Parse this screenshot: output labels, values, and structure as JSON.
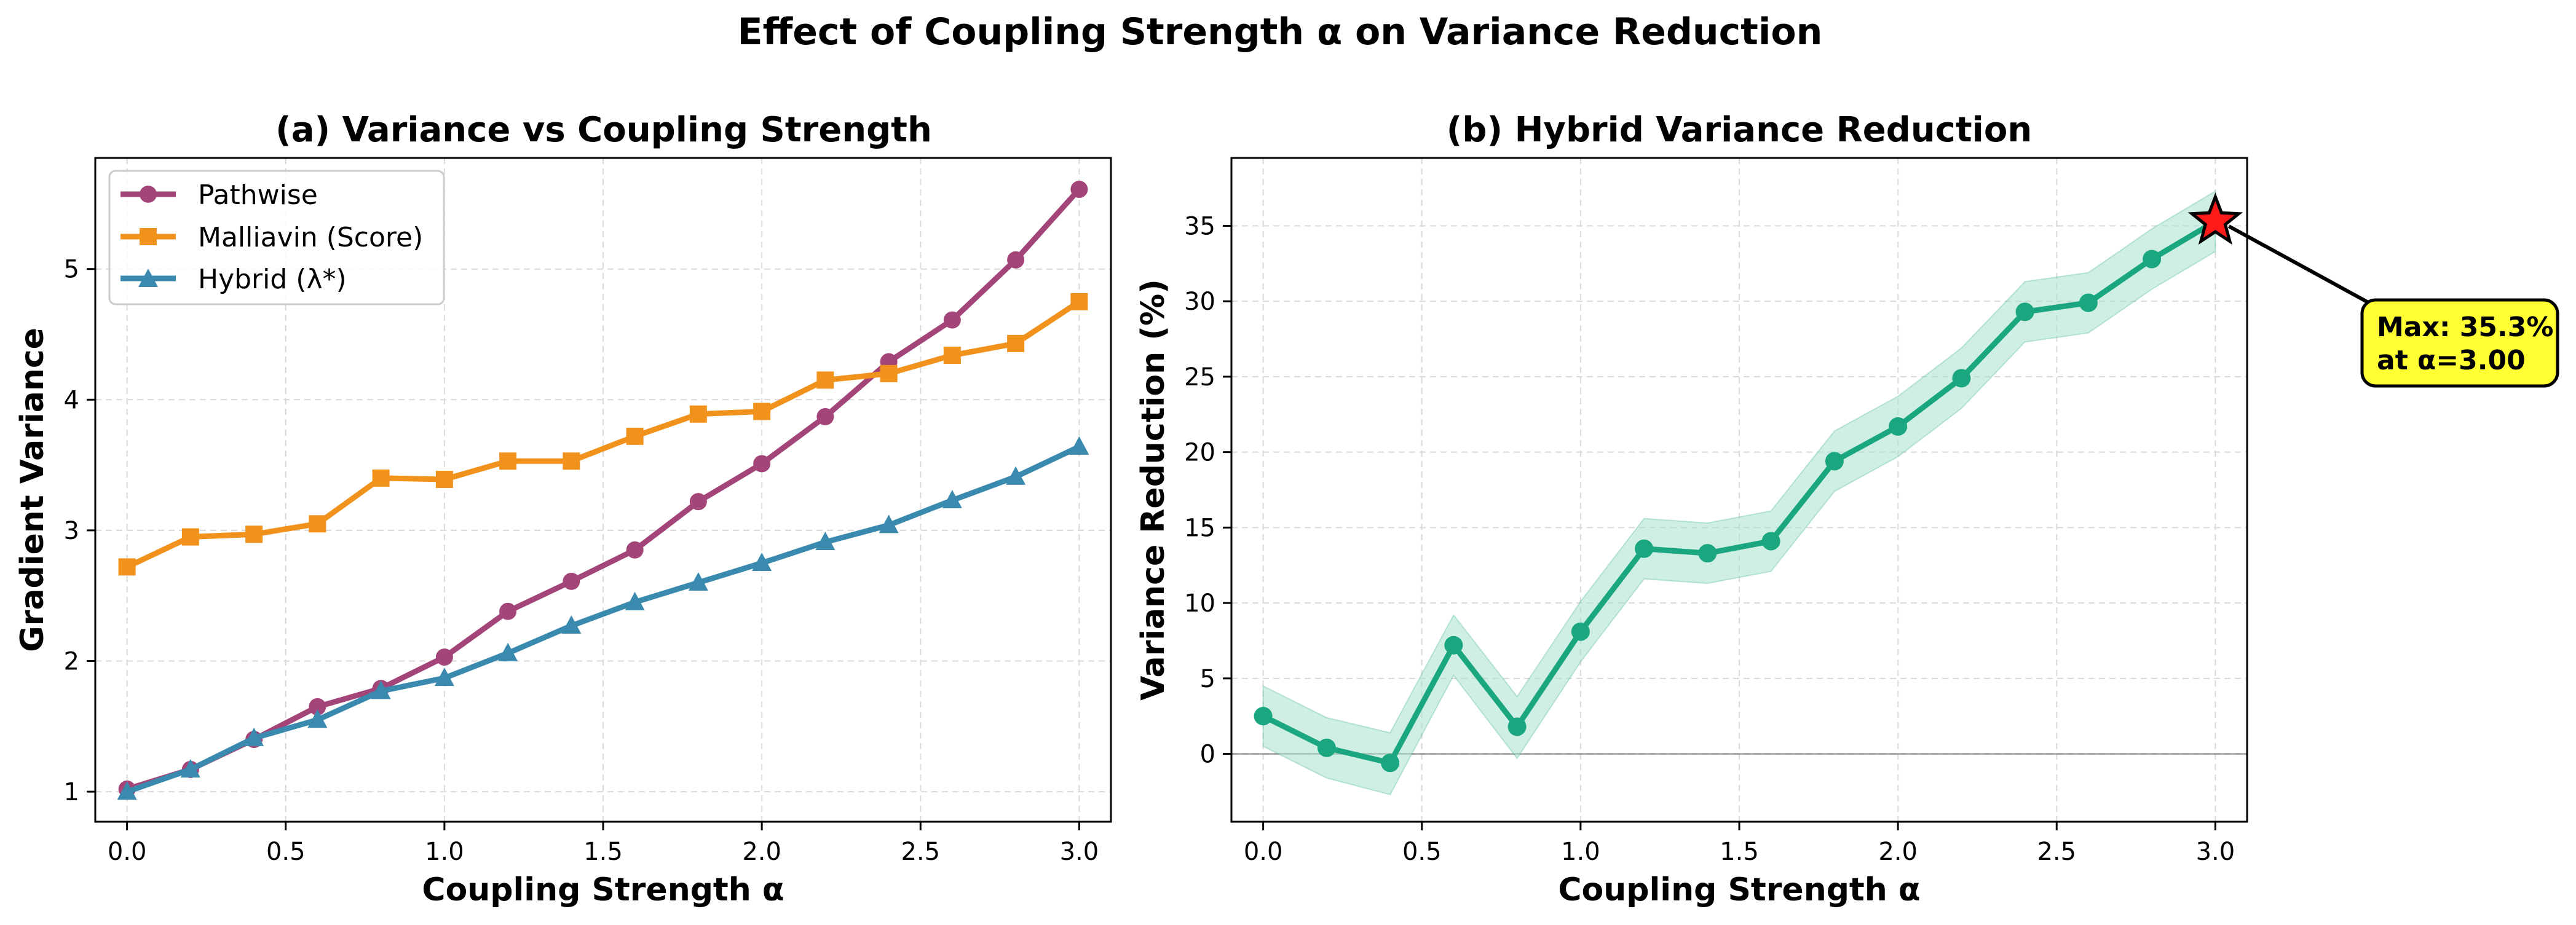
{
  "figure": {
    "suptitle": "Effect of Coupling Strength α on Variance Reduction"
  },
  "colors": {
    "pathwise": "#A4457A",
    "malliavin": "#F0921C",
    "hybrid": "#3A89AE",
    "reduction": "#1AA77F",
    "band": "#A8E0CE",
    "star": "#FF1A1A",
    "annotation_bg": "#FFFF33"
  },
  "chart_data": [
    {
      "type": "line",
      "title": "(a) Variance vs Coupling Strength",
      "xlabel": "Coupling Strength α",
      "ylabel": "Gradient Variance",
      "x": [
        0.0,
        0.2,
        0.4,
        0.6,
        0.8,
        1.0,
        1.2,
        1.4,
        1.6,
        1.8,
        2.0,
        2.2,
        2.4,
        2.6,
        2.8,
        3.0
      ],
      "xlim": [
        -0.1,
        3.1
      ],
      "ylim": [
        0.77,
        5.85
      ],
      "xticks": [
        "0.0",
        "0.5",
        "1.0",
        "1.5",
        "2.0",
        "2.5",
        "3.0"
      ],
      "yticks": [
        "1",
        "2",
        "3",
        "4",
        "5"
      ],
      "grid": true,
      "legend_position": "upper-left",
      "series": [
        {
          "name": "Pathwise",
          "marker": "circle",
          "values": [
            1.02,
            1.17,
            1.4,
            1.65,
            1.79,
            2.03,
            2.38,
            2.61,
            2.85,
            3.22,
            3.51,
            3.87,
            4.29,
            4.61,
            5.07,
            5.61
          ]
        },
        {
          "name": "Malliavin (Score)",
          "marker": "square",
          "values": [
            2.72,
            2.95,
            2.97,
            3.05,
            3.4,
            3.39,
            3.53,
            3.53,
            3.72,
            3.89,
            3.91,
            4.15,
            4.2,
            4.34,
            4.43,
            4.75
          ]
        },
        {
          "name": "Hybrid (λ*)",
          "marker": "triangle",
          "values": [
            1.0,
            1.17,
            1.41,
            1.55,
            1.77,
            1.87,
            2.06,
            2.27,
            2.45,
            2.6,
            2.75,
            2.91,
            3.04,
            3.23,
            3.41,
            3.64
          ]
        }
      ]
    },
    {
      "type": "line",
      "title": "(b) Hybrid Variance Reduction",
      "xlabel": "Coupling Strength α",
      "ylabel": "Variance Reduction (%)",
      "x": [
        0.0,
        0.2,
        0.4,
        0.6,
        0.8,
        1.0,
        1.2,
        1.4,
        1.6,
        1.8,
        2.0,
        2.2,
        2.4,
        2.6,
        2.8,
        3.0
      ],
      "xlim": [
        -0.1,
        3.1
      ],
      "ylim": [
        -4.5,
        39.5
      ],
      "xticks": [
        "0.0",
        "0.5",
        "1.0",
        "1.5",
        "2.0",
        "2.5",
        "3.0"
      ],
      "yticks": [
        "0",
        "5",
        "10",
        "15",
        "20",
        "25",
        "30",
        "35"
      ],
      "grid": true,
      "reference_line_y": 0,
      "series": [
        {
          "values": [
            2.5,
            0.4,
            -0.6,
            7.2,
            1.8,
            8.1,
            13.6,
            13.3,
            14.1,
            19.4,
            21.7,
            24.9,
            29.3,
            29.9,
            32.8,
            35.3
          ]
        }
      ],
      "band": {
        "lower": [
          0.5,
          -1.6,
          -2.7,
          5.2,
          -0.3,
          6.1,
          11.6,
          11.3,
          12.1,
          17.4,
          19.7,
          22.9,
          27.3,
          27.9,
          30.8,
          33.3
        ],
        "upper": [
          4.5,
          2.4,
          1.4,
          9.2,
          3.8,
          10.1,
          15.6,
          15.3,
          16.1,
          21.4,
          23.7,
          26.9,
          31.3,
          31.9,
          34.8,
          37.3
        ]
      },
      "max_point": {
        "x": 3.0,
        "y": 35.3
      },
      "annotation": {
        "line1": "Max: 35.3%",
        "line2": "at α=3.00"
      }
    }
  ]
}
